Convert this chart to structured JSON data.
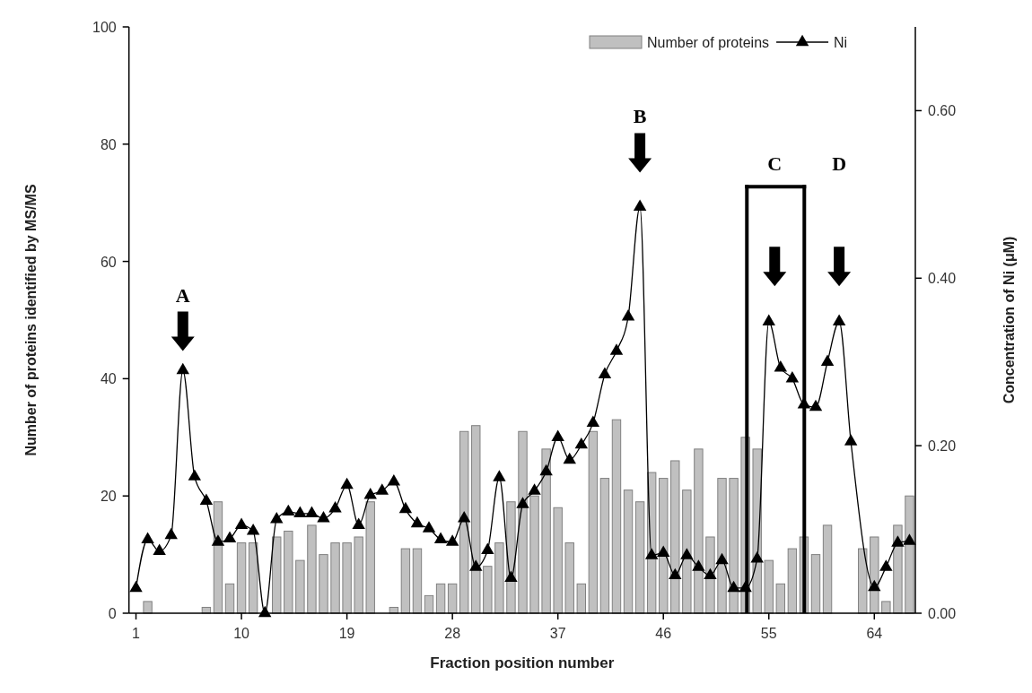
{
  "chart_data": {
    "type": "bar",
    "xlabel": "Fraction position number",
    "ylabel": "Number of proteins identified by MS/MS",
    "y2label": "Concentration of Ni (μM)",
    "x": [
      1,
      2,
      3,
      4,
      5,
      6,
      7,
      8,
      9,
      10,
      11,
      12,
      13,
      14,
      15,
      16,
      17,
      18,
      19,
      20,
      21,
      22,
      23,
      24,
      25,
      26,
      27,
      28,
      29,
      30,
      31,
      32,
      33,
      34,
      35,
      36,
      37,
      38,
      39,
      40,
      41,
      42,
      43,
      44,
      45,
      46,
      47,
      48,
      49,
      50,
      51,
      52,
      53,
      54,
      55,
      56,
      57,
      58,
      59,
      60,
      61,
      62,
      63,
      64,
      65,
      66,
      67
    ],
    "xlim": [
      0.4,
      67.5
    ],
    "xticks": [
      1,
      10,
      19,
      28,
      37,
      46,
      55,
      64
    ],
    "ylim": [
      0,
      100
    ],
    "yticks": [
      0,
      20,
      40,
      60,
      80,
      100
    ],
    "y2lim": [
      0,
      0.7
    ],
    "y2ticks": [
      {
        "value": 0,
        "label": "0.00"
      },
      {
        "value": 0.2,
        "label": "0.20"
      },
      {
        "value": 0.4,
        "label": "0.40"
      },
      {
        "value": 0.6,
        "label": "0.60"
      }
    ],
    "series": [
      {
        "name": "Number of proteins",
        "color": "#c0c0c0",
        "values": [
          0,
          2,
          0,
          0,
          0,
          0,
          1,
          19,
          5,
          12,
          12,
          0,
          13,
          14,
          9,
          15,
          10,
          12,
          12,
          13,
          19,
          0,
          1,
          11,
          11,
          3,
          5,
          5,
          31,
          32,
          8,
          12,
          19,
          31,
          20,
          28,
          18,
          12,
          5,
          31,
          23,
          33,
          21,
          19,
          24,
          23,
          26,
          21,
          28,
          13,
          23,
          23,
          30,
          28,
          9,
          5,
          11,
          13,
          10,
          15,
          0,
          0,
          11,
          13,
          2,
          15,
          20
        ]
      },
      {
        "type": "line",
        "name": "Ni",
        "color": "#000000",
        "axis": "y2",
        "x": [
          1,
          2,
          3,
          4,
          5,
          6,
          7,
          8,
          9,
          10,
          11,
          12,
          13,
          14,
          15,
          16,
          17,
          18,
          19,
          20,
          21,
          22,
          23,
          24,
          25,
          26,
          27,
          28,
          29,
          30,
          31,
          32,
          33,
          34,
          35,
          36,
          37,
          38,
          39,
          40,
          41,
          42,
          43,
          44,
          45,
          46,
          47,
          48,
          49,
          50,
          51,
          52,
          53,
          54,
          55,
          56,
          57,
          58,
          59,
          60,
          61,
          62,
          64,
          65,
          66,
          67
        ],
        "values": [
          0.03,
          0.088,
          0.074,
          0.093,
          0.29,
          0.163,
          0.134,
          0.085,
          0.089,
          0.105,
          0.098,
          0.0,
          0.112,
          0.121,
          0.119,
          0.119,
          0.113,
          0.125,
          0.153,
          0.105,
          0.141,
          0.146,
          0.157,
          0.124,
          0.107,
          0.101,
          0.088,
          0.085,
          0.113,
          0.055,
          0.075,
          0.162,
          0.042,
          0.13,
          0.146,
          0.169,
          0.21,
          0.183,
          0.201,
          0.227,
          0.285,
          0.313,
          0.354,
          0.485,
          0.069,
          0.072,
          0.045,
          0.069,
          0.055,
          0.045,
          0.063,
          0.03,
          0.03,
          0.065,
          0.348,
          0.293,
          0.28,
          0.249,
          0.246,
          0.3,
          0.348,
          0.205,
          0.031,
          0.055,
          0.084,
          0.086
        ]
      }
    ],
    "marker": "triangle",
    "legend": "top right",
    "annotations": [
      "A",
      "B",
      "C",
      "D"
    ]
  }
}
